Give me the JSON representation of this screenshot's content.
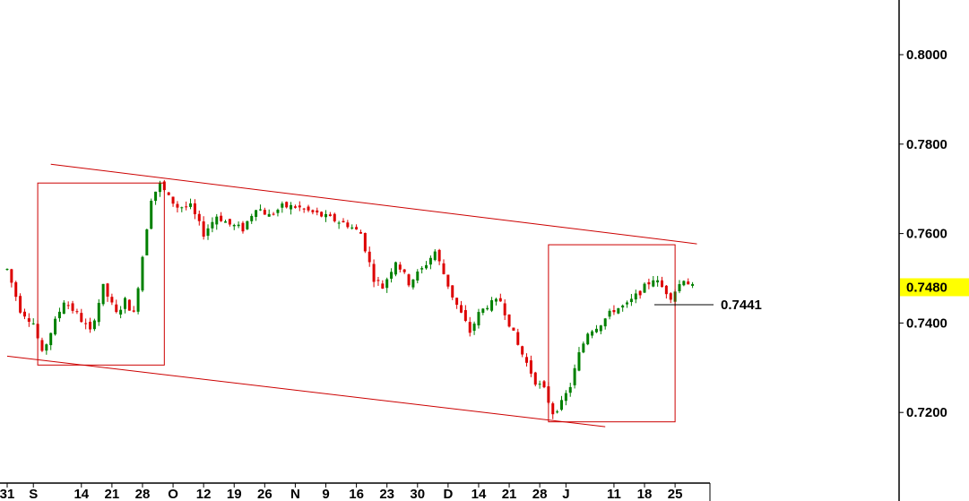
{
  "chart_data": {
    "type": "candlestick",
    "title": "",
    "y_axis": {
      "side": "right",
      "ticks": [
        "0.8000",
        "0.7800",
        "0.7600",
        "0.7400",
        "0.7200"
      ],
      "tick_values": [
        0.8,
        0.78,
        0.76,
        0.74,
        0.72
      ],
      "ylim": [
        0.7085,
        0.812
      ]
    },
    "x_axis": {
      "labels": [
        "31",
        "S",
        "14",
        "21",
        "28",
        "O",
        "12",
        "19",
        "26",
        "N",
        "9",
        "16",
        "23",
        "30",
        "D",
        "14",
        "21",
        "28",
        "J",
        "11",
        "18",
        "25"
      ],
      "label_bar_index": [
        0,
        6,
        17,
        24,
        31,
        38,
        45,
        52,
        59,
        66,
        73,
        80,
        87,
        94,
        101,
        108,
        115,
        122,
        128,
        139,
        146,
        153
      ]
    },
    "last_price": {
      "value": 0.748,
      "label": "0.7480",
      "highlight_color": "#ffff00"
    },
    "annotation": {
      "label": "0.7441",
      "value": 0.7441
    },
    "trend_channel": {
      "color": "#cc0000",
      "upper": [
        {
          "bar": 10,
          "price": 0.7755
        },
        {
          "bar": 158,
          "price": 0.7577
        }
      ],
      "lower": [
        {
          "bar": 0,
          "price": 0.7326
        },
        {
          "bar": 137,
          "price": 0.7168
        }
      ]
    },
    "boxes": [
      {
        "color": "#cc0000",
        "from_bar": 7,
        "to_bar": 36,
        "price_top": 0.7713,
        "price_bottom": 0.7306
      },
      {
        "color": "#cc0000",
        "from_bar": 124,
        "to_bar": 153,
        "price_top": 0.7575,
        "price_bottom": 0.7179
      }
    ],
    "colors": {
      "up": "#008000",
      "down": "#dd0000",
      "axis": "#000000"
    },
    "path_points": [
      [
        0,
        0.752
      ],
      [
        3,
        0.743
      ],
      [
        6,
        0.74
      ],
      [
        8,
        0.733
      ],
      [
        10,
        0.738
      ],
      [
        13,
        0.745
      ],
      [
        16,
        0.742
      ],
      [
        19,
        0.738
      ],
      [
        22,
        0.748
      ],
      [
        25,
        0.742
      ],
      [
        27,
        0.745
      ],
      [
        29,
        0.742
      ],
      [
        31,
        0.755
      ],
      [
        33,
        0.768
      ],
      [
        35,
        0.771
      ],
      [
        37,
        0.768
      ],
      [
        39,
        0.766
      ],
      [
        42,
        0.766
      ],
      [
        45,
        0.76
      ],
      [
        48,
        0.764
      ],
      [
        51,
        0.762
      ],
      [
        54,
        0.761
      ],
      [
        57,
        0.766
      ],
      [
        60,
        0.764
      ],
      [
        63,
        0.766
      ],
      [
        66,
        0.766
      ],
      [
        69,
        0.765
      ],
      [
        72,
        0.764
      ],
      [
        75,
        0.763
      ],
      [
        78,
        0.762
      ],
      [
        81,
        0.76
      ],
      [
        84,
        0.75
      ],
      [
        86,
        0.748
      ],
      [
        89,
        0.754
      ],
      [
        92,
        0.749
      ],
      [
        95,
        0.752
      ],
      [
        98,
        0.756
      ],
      [
        100,
        0.751
      ],
      [
        102,
        0.746
      ],
      [
        104,
        0.742
      ],
      [
        106,
        0.738
      ],
      [
        108,
        0.742
      ],
      [
        110,
        0.744
      ],
      [
        113,
        0.745
      ],
      [
        115,
        0.74
      ],
      [
        117,
        0.735
      ],
      [
        119,
        0.731
      ],
      [
        121,
        0.727
      ],
      [
        123,
        0.725
      ],
      [
        125,
        0.72
      ],
      [
        127,
        0.722
      ],
      [
        129,
        0.726
      ],
      [
        131,
        0.733
      ],
      [
        133,
        0.738
      ],
      [
        136,
        0.74
      ],
      [
        139,
        0.743
      ],
      [
        142,
        0.744
      ],
      [
        145,
        0.747
      ],
      [
        148,
        0.75
      ],
      [
        150,
        0.748
      ],
      [
        152,
        0.746
      ],
      [
        155,
        0.75
      ],
      [
        157,
        0.748
      ]
    ]
  }
}
